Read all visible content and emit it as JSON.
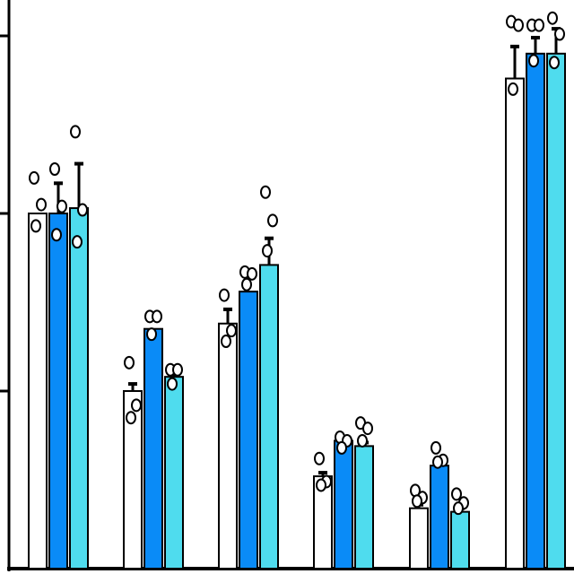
{
  "chart_data": {
    "type": "bar",
    "title": "",
    "xlabel": "",
    "ylabel": "",
    "ylim": [
      0,
      3
    ],
    "grid": false,
    "legend": "none",
    "categories": [
      "",
      "",
      "",
      "",
      "",
      ""
    ],
    "series": [
      {
        "color": "#ffffff",
        "values": [
          2.0,
          1.0,
          1.38,
          0.52,
          0.34,
          2.76
        ],
        "errors": [
          0.0,
          0.04,
          0.08,
          0.02,
          0.02,
          0.18
        ],
        "points": [
          [
            2.2,
            2.05,
            1.93
          ],
          [
            1.16,
            0.92,
            0.85
          ],
          [
            1.54,
            1.34,
            1.28
          ],
          [
            0.62,
            0.49,
            0.47
          ],
          [
            0.44,
            0.4,
            0.38
          ],
          [
            3.08,
            3.06,
            2.7
          ]
        ]
      },
      {
        "color": "#0a8bf7",
        "values": [
          2.0,
          1.35,
          1.56,
          0.72,
          0.58,
          2.9
        ],
        "errors": [
          0.17,
          0.0,
          0.0,
          0.02,
          0.02,
          0.09
        ],
        "points": [
          [
            2.25,
            2.04,
            1.88
          ],
          [
            1.42,
            1.42,
            1.32
          ],
          [
            1.67,
            1.66,
            1.6
          ],
          [
            0.74,
            0.72,
            0.68
          ],
          [
            0.68,
            0.61,
            0.6
          ],
          [
            3.06,
            3.06,
            2.86
          ]
        ]
      },
      {
        "color": "#4fdcee",
        "values": [
          2.03,
          1.08,
          1.71,
          0.69,
          0.32,
          2.9
        ],
        "errors": [
          0.25,
          0.04,
          0.15,
          0.02,
          0.02,
          0.14
        ],
        "points": [
          [
            2.46,
            2.02,
            1.84
          ],
          [
            1.12,
            1.12,
            1.04
          ],
          [
            2.12,
            1.96,
            1.79
          ],
          [
            0.82,
            0.79,
            0.72
          ],
          [
            0.42,
            0.37,
            0.34
          ],
          [
            3.1,
            3.01,
            2.85
          ]
        ]
      }
    ]
  }
}
